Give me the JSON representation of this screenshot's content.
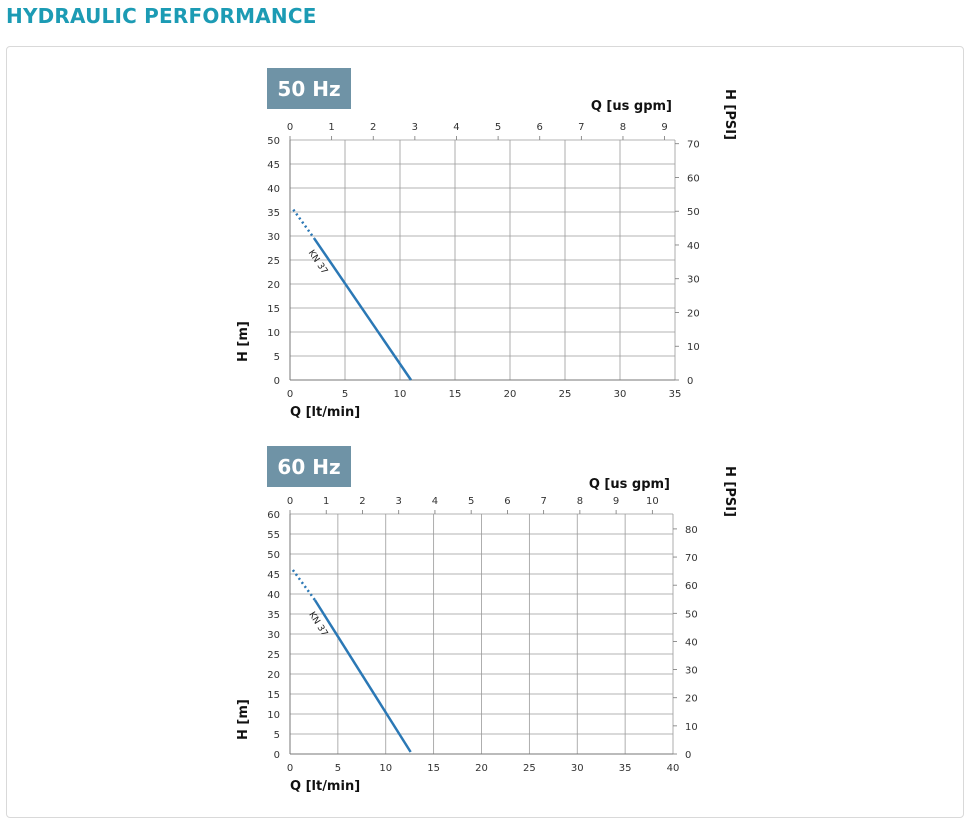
{
  "page": {
    "title": "HYDRAULIC PERFORMANCE"
  },
  "colors": {
    "title": "#1c9bb4",
    "badge_bg": "#6f93a6",
    "curve": "#2b78b5",
    "grid": "#9a9a9a"
  },
  "chart_data": [
    {
      "type": "line",
      "title": "50 Hz",
      "xlabel": "Q [lt/min]",
      "ylabel": "H [m]",
      "x2label": "Q [us gpm]",
      "y2label": "H [PSI]",
      "xlim": [
        0,
        35
      ],
      "ylim": [
        0,
        50
      ],
      "x2lim": [
        0,
        9.25
      ],
      "y2lim": [
        0,
        71.1
      ],
      "x_ticks": [
        "0",
        "5",
        "10",
        "15",
        "20",
        "25",
        "30",
        "35"
      ],
      "y_ticks": [
        "0",
        "5",
        "10",
        "15",
        "20",
        "25",
        "30",
        "35",
        "40",
        "45",
        "50"
      ],
      "x2_ticks": [
        "0",
        "1",
        "2",
        "3",
        "4",
        "5",
        "6",
        "7",
        "8",
        "9"
      ],
      "y2_ticks": [
        "0",
        "10",
        "20",
        "30",
        "40",
        "50",
        "60",
        "70"
      ],
      "grid": true,
      "series": [
        {
          "name": "KN 37",
          "x": [
            2.2,
            11.0
          ],
          "y": [
            29.5,
            0
          ],
          "dotted_x": [
            0.3,
            2.2
          ],
          "dotted_y": [
            35.5,
            29.5
          ]
        }
      ]
    },
    {
      "type": "line",
      "title": "60 Hz",
      "xlabel": "Q [lt/min]",
      "ylabel": "H [m]",
      "x2label": "Q [us gpm]",
      "y2label": "H [PSI]",
      "xlim": [
        0,
        40
      ],
      "ylim": [
        0,
        60
      ],
      "x2lim": [
        0,
        10.57
      ],
      "y2lim": [
        0,
        85.3
      ],
      "x_ticks": [
        "0",
        "5",
        "10",
        "15",
        "20",
        "25",
        "30",
        "35",
        "40"
      ],
      "y_ticks": [
        "0",
        "5",
        "10",
        "15",
        "20",
        "25",
        "30",
        "35",
        "40",
        "45",
        "50",
        "55",
        "60"
      ],
      "x2_ticks": [
        "0",
        "1",
        "2",
        "3",
        "4",
        "5",
        "6",
        "7",
        "8",
        "9",
        "10"
      ],
      "y2_ticks": [
        "0",
        "10",
        "20",
        "30",
        "40",
        "50",
        "60",
        "70",
        "80"
      ],
      "grid": true,
      "series": [
        {
          "name": "KN 37",
          "x": [
            2.6,
            12.6
          ],
          "y": [
            38.5,
            0.5
          ],
          "dotted_x": [
            0.3,
            2.6
          ],
          "dotted_y": [
            46,
            38.5
          ]
        }
      ]
    }
  ]
}
